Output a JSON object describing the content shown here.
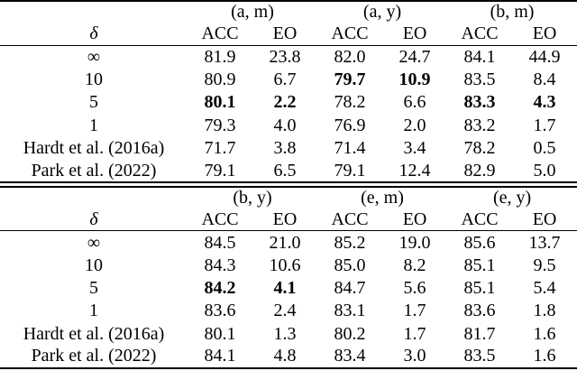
{
  "page": {
    "background_color": "#ffffff",
    "text_color": "#000000",
    "rule_color": "#000000"
  },
  "tables": [
    {
      "position": "top",
      "groups": [
        "(a, m)",
        "(a, y)",
        "(b, m)"
      ],
      "delta_label": "δ",
      "col_headers": [
        "ACC",
        "EO",
        "ACC",
        "EO",
        "ACC",
        "EO"
      ],
      "rows": [
        {
          "label": "∞",
          "values": [
            "81.9",
            "23.8",
            "82.0",
            "24.7",
            "84.1",
            "44.9"
          ],
          "bold": [
            false,
            false,
            false,
            false,
            false,
            false
          ]
        },
        {
          "label": "10",
          "values": [
            "80.9",
            "6.7",
            "79.7",
            "10.9",
            "83.5",
            "8.4"
          ],
          "bold": [
            false,
            false,
            true,
            true,
            false,
            false
          ]
        },
        {
          "label": "5",
          "values": [
            "80.1",
            "2.2",
            "78.2",
            "6.6",
            "83.3",
            "4.3"
          ],
          "bold": [
            true,
            true,
            false,
            false,
            true,
            true
          ]
        },
        {
          "label": "1",
          "values": [
            "79.3",
            "4.0",
            "76.9",
            "2.0",
            "83.2",
            "1.7"
          ],
          "bold": [
            false,
            false,
            false,
            false,
            false,
            false
          ]
        },
        {
          "label": "Hardt et al. (2016a)",
          "values": [
            "71.7",
            "3.8",
            "71.4",
            "3.4",
            "78.2",
            "0.5"
          ],
          "bold": [
            false,
            false,
            false,
            false,
            false,
            false
          ]
        },
        {
          "label": "Park et al. (2022)",
          "values": [
            "79.1",
            "6.5",
            "79.1",
            "12.4",
            "82.9",
            "5.0"
          ],
          "bold": [
            false,
            false,
            false,
            false,
            false,
            false
          ]
        }
      ]
    },
    {
      "position": "bottom",
      "groups": [
        "(b, y)",
        "(e, m)",
        "(e, y)"
      ],
      "delta_label": "δ",
      "col_headers": [
        "ACC",
        "EO",
        "ACC",
        "EO",
        "ACC",
        "EO"
      ],
      "rows": [
        {
          "label": "∞",
          "values": [
            "84.5",
            "21.0",
            "85.2",
            "19.0",
            "85.6",
            "13.7"
          ],
          "bold": [
            false,
            false,
            false,
            false,
            false,
            false
          ]
        },
        {
          "label": "10",
          "values": [
            "84.3",
            "10.6",
            "85.0",
            "8.2",
            "85.1",
            "9.5"
          ],
          "bold": [
            false,
            false,
            false,
            false,
            false,
            false
          ]
        },
        {
          "label": "5",
          "values": [
            "84.2",
            "4.1",
            "84.7",
            "5.6",
            "85.1",
            "5.4"
          ],
          "bold": [
            true,
            true,
            false,
            false,
            false,
            false
          ]
        },
        {
          "label": "1",
          "values": [
            "83.6",
            "2.4",
            "83.1",
            "1.7",
            "83.6",
            "1.8"
          ],
          "bold": [
            false,
            false,
            false,
            false,
            false,
            false
          ]
        },
        {
          "label": "Hardt et al. (2016a)",
          "values": [
            "80.1",
            "1.3",
            "80.2",
            "1.7",
            "81.7",
            "1.6"
          ],
          "bold": [
            false,
            false,
            false,
            false,
            false,
            false
          ]
        },
        {
          "label": "Park et al. (2022)",
          "values": [
            "84.1",
            "4.8",
            "83.4",
            "3.0",
            "83.5",
            "1.6"
          ],
          "bold": [
            false,
            false,
            false,
            false,
            false,
            false
          ]
        }
      ]
    }
  ]
}
